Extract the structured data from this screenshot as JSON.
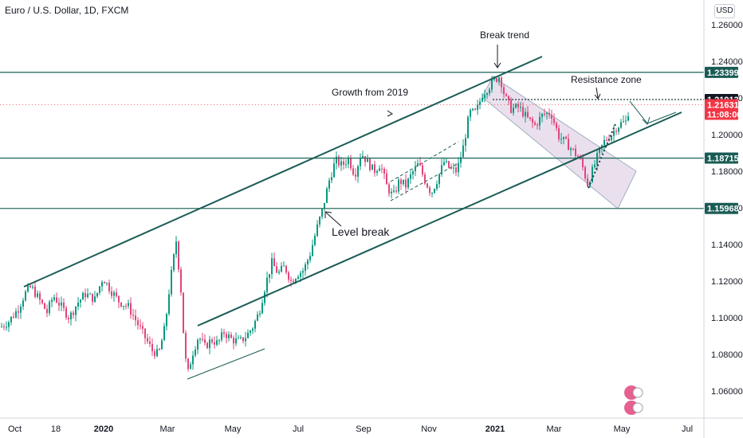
{
  "header": {
    "title": "Euro / U.S. Dollar, 1D, FXCM",
    "currency": "USD"
  },
  "colors": {
    "up": "#089981",
    "down": "#e0457b",
    "trendline": "#1a5c55",
    "level": "#2a6f62",
    "channel_fill": "#d9c7de",
    "channel_stroke": "#9fb0c2",
    "current_price": "#f23645",
    "grid": "#f0f3fa"
  },
  "chart_data": {
    "type": "candlestick",
    "symbol": "EURUSD",
    "interval": "1D",
    "x_labels": [
      "Oct",
      "18",
      "2020",
      "Mar",
      "May",
      "Jul",
      "Sep",
      "Nov",
      "2021",
      "Mar",
      "May",
      "Jul"
    ],
    "y_ticks": [
      1.06,
      1.08,
      1.1,
      1.12,
      1.14,
      1.16,
      1.18,
      1.2,
      1.22,
      1.24,
      1.26
    ],
    "ylim": [
      1.048,
      1.27
    ],
    "price_path": [
      [
        0,
        1.095
      ],
      [
        10,
        1.098
      ],
      [
        22,
        1.105
      ],
      [
        30,
        1.113
      ],
      [
        38,
        1.117
      ],
      [
        48,
        1.11
      ],
      [
        58,
        1.103
      ],
      [
        66,
        1.112
      ],
      [
        76,
        1.106
      ],
      [
        86,
        1.1
      ],
      [
        96,
        1.108
      ],
      [
        106,
        1.113
      ],
      [
        118,
        1.11
      ],
      [
        128,
        1.122
      ],
      [
        138,
        1.115
      ],
      [
        148,
        1.109
      ],
      [
        160,
        1.106
      ],
      [
        170,
        1.098
      ],
      [
        180,
        1.09
      ],
      [
        190,
        1.082
      ],
      [
        198,
        1.08
      ],
      [
        206,
        1.095
      ],
      [
        212,
        1.118
      ],
      [
        220,
        1.142
      ],
      [
        226,
        1.115
      ],
      [
        230,
        1.085
      ],
      [
        234,
        1.068
      ],
      [
        240,
        1.08
      ],
      [
        248,
        1.09
      ],
      [
        256,
        1.084
      ],
      [
        264,
        1.088
      ],
      [
        272,
        1.086
      ],
      [
        280,
        1.092
      ],
      [
        290,
        1.088
      ],
      [
        300,
        1.087
      ],
      [
        308,
        1.09
      ],
      [
        316,
        1.095
      ],
      [
        324,
        1.103
      ],
      [
        332,
        1.118
      ],
      [
        340,
        1.13
      ],
      [
        348,
        1.124
      ],
      [
        356,
        1.128
      ],
      [
        364,
        1.12
      ],
      [
        372,
        1.124
      ],
      [
        380,
        1.126
      ],
      [
        388,
        1.135
      ],
      [
        396,
        1.148
      ],
      [
        404,
        1.16
      ],
      [
        412,
        1.175
      ],
      [
        420,
        1.186
      ],
      [
        428,
        1.183
      ],
      [
        436,
        1.187
      ],
      [
        444,
        1.178
      ],
      [
        452,
        1.19
      ],
      [
        460,
        1.185
      ],
      [
        468,
        1.18
      ],
      [
        476,
        1.184
      ],
      [
        484,
        1.172
      ],
      [
        492,
        1.166
      ],
      [
        500,
        1.175
      ],
      [
        508,
        1.172
      ],
      [
        516,
        1.179
      ],
      [
        524,
        1.184
      ],
      [
        532,
        1.175
      ],
      [
        540,
        1.168
      ],
      [
        548,
        1.176
      ],
      [
        556,
        1.185
      ],
      [
        564,
        1.181
      ],
      [
        572,
        1.18
      ],
      [
        580,
        1.193
      ],
      [
        588,
        1.212
      ],
      [
        596,
        1.212
      ],
      [
        604,
        1.222
      ],
      [
        612,
        1.226
      ],
      [
        620,
        1.23
      ],
      [
        626,
        1.232
      ],
      [
        632,
        1.221
      ],
      [
        640,
        1.214
      ],
      [
        650,
        1.215
      ],
      [
        660,
        1.209
      ],
      [
        670,
        1.205
      ],
      [
        680,
        1.211
      ],
      [
        690,
        1.212
      ],
      [
        700,
        1.199
      ],
      [
        710,
        1.195
      ],
      [
        720,
        1.19
      ],
      [
        728,
        1.185
      ],
      [
        736,
        1.173
      ],
      [
        742,
        1.18
      ],
      [
        750,
        1.19
      ],
      [
        758,
        1.197
      ],
      [
        766,
        1.2
      ],
      [
        772,
        1.204
      ],
      [
        778,
        1.206
      ],
      [
        784,
        1.207
      ],
      [
        789,
        1.216
      ]
    ],
    "levels": [
      1.23399,
      1.21913,
      1.18715,
      1.15968
    ],
    "current_price": 1.21631,
    "current_time": "11:08:06",
    "annotations": [
      "Break trend",
      "Resistance zone",
      "Growth from 2019",
      "Level break"
    ],
    "grid": false,
    "legend": "none"
  }
}
